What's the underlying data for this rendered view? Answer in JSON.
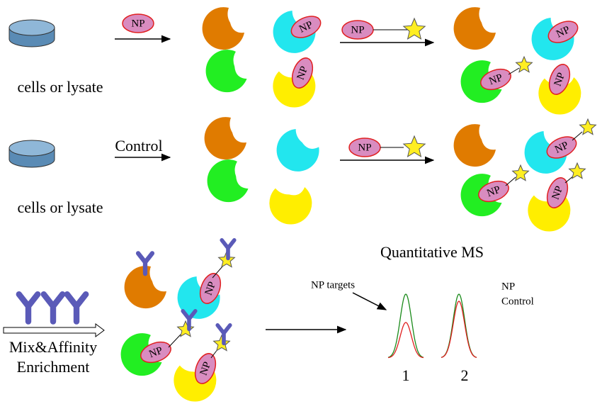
{
  "row1": {
    "source_label": "cells or lysate",
    "reagent": "NP",
    "bound": [
      "NP",
      "NP"
    ],
    "probe": "NP",
    "labeled": [
      "NP",
      "NP",
      "NP"
    ]
  },
  "row2": {
    "source_label": "cells or lysate",
    "reagent": "Control",
    "probe": "NP",
    "labeled": [
      "NP",
      "NP",
      "NP"
    ]
  },
  "row3": {
    "step_label": [
      "Mix&Affinity",
      "Enrichment"
    ],
    "labeled": [
      "NP",
      "NP",
      "NP"
    ],
    "ms_title": "Quantitative MS",
    "annotation": "NP targets",
    "legend": [
      "NP",
      "Control"
    ],
    "peaks": [
      "1",
      "2"
    ]
  }
}
